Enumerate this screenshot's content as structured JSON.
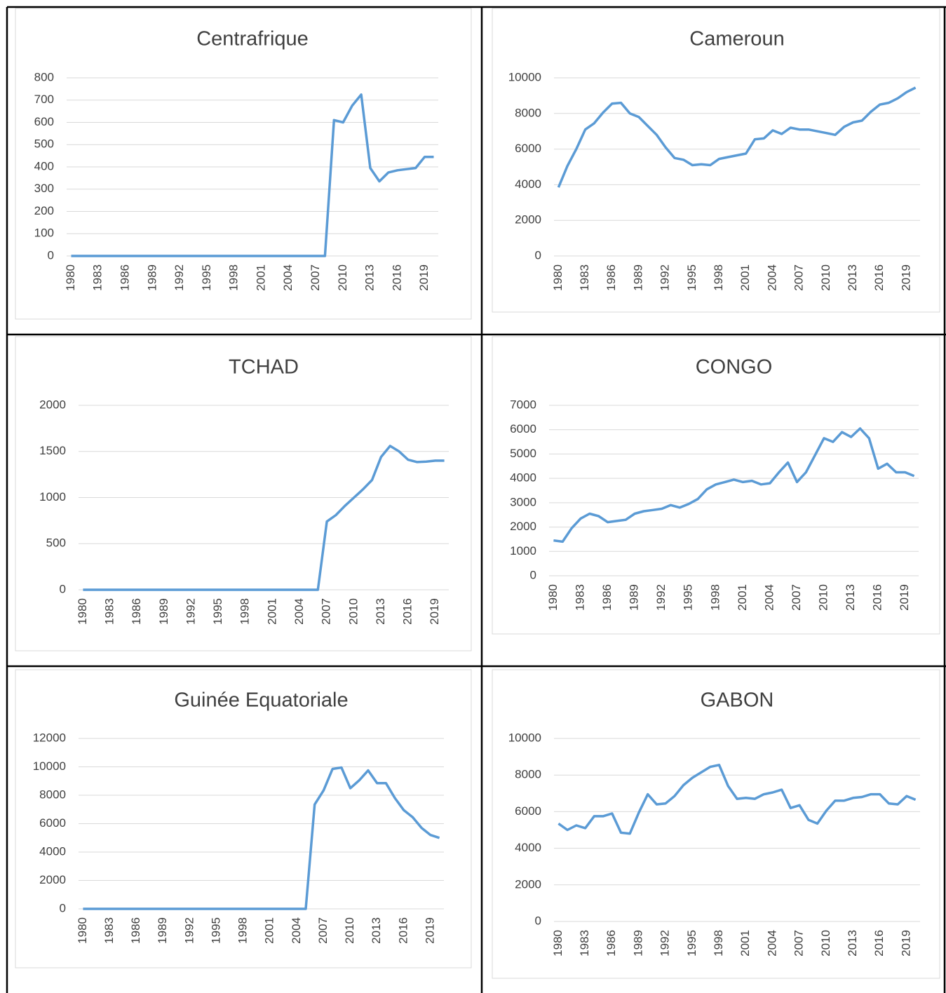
{
  "chart_data": [
    {
      "type": "line",
      "title": "Centrafrique",
      "color": "#5b9bd5",
      "grid": true,
      "categories": [
        1980,
        null,
        null,
        1983,
        null,
        null,
        1986,
        null,
        null,
        1989,
        null,
        null,
        1992,
        null,
        null,
        1995,
        null,
        null,
        1998,
        null,
        null,
        2001,
        null,
        null,
        2004,
        null,
        null,
        2007,
        null,
        null,
        2010,
        null,
        null,
        2013,
        null,
        null,
        2016,
        null,
        null,
        2019,
        null
      ],
      "values": [
        0,
        0,
        0,
        0,
        0,
        0,
        0,
        0,
        0,
        0,
        0,
        0,
        0,
        0,
        0,
        0,
        0,
        0,
        0,
        0,
        0,
        0,
        0,
        0,
        0,
        0,
        0,
        0,
        0,
        610,
        600,
        675,
        725,
        395,
        335,
        375,
        385,
        390,
        395,
        445,
        445
      ],
      "ylim": [
        0,
        800
      ],
      "yticks": [
        0,
        100,
        200,
        300,
        400,
        500,
        600,
        700,
        800
      ]
    },
    {
      "type": "line",
      "title": "Cameroun",
      "color": "#5b9bd5",
      "grid": true,
      "categories": [
        1980,
        null,
        null,
        1983,
        null,
        null,
        1986,
        null,
        null,
        1989,
        null,
        null,
        1992,
        null,
        null,
        1995,
        null,
        null,
        1998,
        null,
        null,
        2001,
        null,
        null,
        2004,
        null,
        null,
        2007,
        null,
        null,
        2010,
        null,
        null,
        2013,
        null,
        null,
        2016,
        null,
        null,
        2019,
        null
      ],
      "values": [
        3850,
        5050,
        6000,
        7100,
        7450,
        8050,
        8550,
        8600,
        8000,
        7800,
        7300,
        6800,
        6100,
        5500,
        5400,
        5100,
        5150,
        5100,
        5450,
        5550,
        5650,
        5750,
        6550,
        6600,
        7050,
        6850,
        7200,
        7100,
        7100,
        7000,
        6900,
        6800,
        7250,
        7500,
        7600,
        8100,
        8500,
        8600,
        8850,
        9200,
        9450
      ],
      "ylim": [
        0,
        10000
      ],
      "yticks": [
        0,
        2000,
        4000,
        6000,
        8000,
        10000
      ]
    },
    {
      "type": "line",
      "title": "TCHAD",
      "color": "#5b9bd5",
      "grid": true,
      "categories": [
        1980,
        null,
        null,
        1983,
        null,
        null,
        1986,
        null,
        null,
        1989,
        null,
        null,
        1992,
        null,
        null,
        1995,
        null,
        null,
        1998,
        null,
        null,
        2001,
        null,
        null,
        2004,
        null,
        null,
        2007,
        null,
        null,
        2010,
        null,
        null,
        2013,
        null,
        null,
        2016,
        null,
        null,
        2019,
        null
      ],
      "values": [
        0,
        0,
        0,
        0,
        0,
        0,
        0,
        0,
        0,
        0,
        0,
        0,
        0,
        0,
        0,
        0,
        0,
        0,
        0,
        0,
        0,
        0,
        0,
        0,
        0,
        0,
        0,
        740,
        810,
        910,
        1000,
        1090,
        1190,
        1440,
        1560,
        1500,
        1410,
        1385,
        1390,
        1400,
        1400
      ],
      "ylim": [
        0,
        2000
      ],
      "yticks": [
        0,
        500,
        1000,
        1500,
        2000
      ]
    },
    {
      "type": "line",
      "title": "CONGO",
      "color": "#5b9bd5",
      "grid": true,
      "categories": [
        1980,
        null,
        null,
        1983,
        null,
        null,
        1986,
        null,
        null,
        1989,
        null,
        null,
        1992,
        null,
        null,
        1995,
        null,
        null,
        1998,
        null,
        null,
        2001,
        null,
        null,
        2004,
        null,
        null,
        2007,
        null,
        null,
        2010,
        null,
        null,
        2013,
        null,
        null,
        2016,
        null,
        null,
        2019,
        null
      ],
      "values": [
        1450,
        1400,
        1950,
        2350,
        2550,
        2450,
        2200,
        2250,
        2300,
        2550,
        2650,
        2700,
        2750,
        2900,
        2800,
        2950,
        3150,
        3550,
        3750,
        3850,
        3950,
        3850,
        3900,
        3750,
        3800,
        4250,
        4650,
        3850,
        4250,
        4950,
        5650,
        5500,
        5900,
        5700,
        6050,
        5650,
        4400,
        4600,
        4250,
        4250,
        4100
      ],
      "ylim": [
        0,
        7000
      ],
      "yticks": [
        0,
        1000,
        2000,
        3000,
        4000,
        5000,
        6000,
        7000
      ]
    },
    {
      "type": "line",
      "title": "Guinée Equatoriale",
      "color": "#5b9bd5",
      "grid": true,
      "categories": [
        1980,
        null,
        null,
        1983,
        null,
        null,
        1986,
        null,
        null,
        1989,
        null,
        null,
        1992,
        null,
        null,
        1995,
        null,
        null,
        1998,
        null,
        null,
        2001,
        null,
        null,
        2004,
        null,
        null,
        2007,
        null,
        null,
        2010,
        null,
        null,
        2013,
        null,
        null,
        2016,
        null,
        null,
        2019,
        null
      ],
      "values": [
        0,
        0,
        0,
        0,
        0,
        0,
        0,
        0,
        0,
        0,
        0,
        0,
        0,
        0,
        0,
        0,
        0,
        0,
        0,
        0,
        0,
        0,
        0,
        0,
        0,
        0,
        7350,
        8350,
        9850,
        9950,
        8500,
        9050,
        9750,
        8850,
        8850,
        7800,
        6950,
        6450,
        5700,
        5200,
        5000
      ],
      "ylim": [
        0,
        12000
      ],
      "yticks": [
        0,
        2000,
        4000,
        6000,
        8000,
        10000,
        12000
      ]
    },
    {
      "type": "line",
      "title": "GABON",
      "color": "#5b9bd5",
      "grid": true,
      "categories": [
        1980,
        null,
        null,
        1983,
        null,
        null,
        1986,
        null,
        null,
        1989,
        null,
        null,
        1992,
        null,
        null,
        1995,
        null,
        null,
        1998,
        null,
        null,
        2001,
        null,
        null,
        2004,
        null,
        null,
        2007,
        null,
        null,
        2010,
        null,
        null,
        2013,
        null,
        null,
        2016,
        null,
        null,
        2019,
        null
      ],
      "values": [
        5350,
        5000,
        5250,
        5100,
        5750,
        5750,
        5900,
        4850,
        4800,
        5950,
        6950,
        6400,
        6450,
        6850,
        7450,
        7850,
        8150,
        8450,
        8550,
        7400,
        6700,
        6750,
        6700,
        6950,
        7050,
        7200,
        6200,
        6350,
        5550,
        5350,
        6050,
        6600,
        6600,
        6750,
        6800,
        6950,
        6950,
        6450,
        6400,
        6850,
        6650
      ],
      "ylim": [
        0,
        10000
      ],
      "yticks": [
        0,
        2000,
        4000,
        6000,
        8000,
        10000
      ]
    }
  ]
}
